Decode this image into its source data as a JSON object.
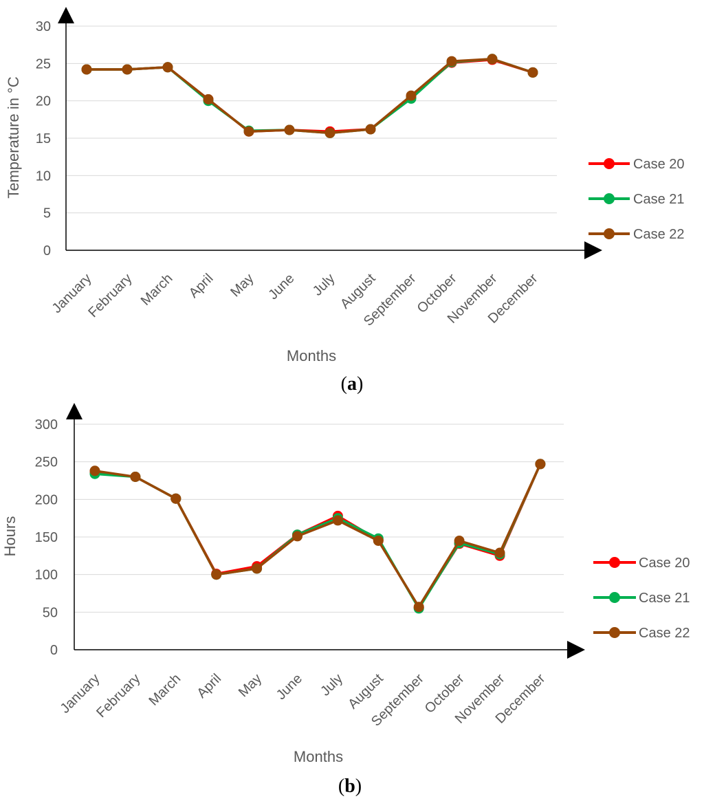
{
  "colors": {
    "grid": "#d9d9d9",
    "axis": "#000000",
    "text": "#595959",
    "case20": "#ff0000",
    "case21": "#00b050",
    "case22": "#984807"
  },
  "chart_data": [
    {
      "type": "line",
      "panel": "a",
      "panel_label": {
        "open": "(",
        "letter": "a",
        "close": ")"
      },
      "title": "",
      "xlabel": "Months",
      "ylabel": "Temperature in °C",
      "ylim": [
        0,
        30
      ],
      "yticks": [
        0,
        5,
        10,
        15,
        20,
        25,
        30
      ],
      "grid": true,
      "legend": "right",
      "categories": [
        "January",
        "February",
        "March",
        "April",
        "May",
        "June",
        "July",
        "August",
        "September",
        "October",
        "November",
        "December"
      ],
      "series": [
        {
          "name": "Case 20",
          "color": "#ff0000",
          "values": [
            24.2,
            24.2,
            24.5,
            20.2,
            15.9,
            16.1,
            15.9,
            16.2,
            20.5,
            25.1,
            25.5,
            23.8
          ]
        },
        {
          "name": "Case 21",
          "color": "#00b050",
          "values": [
            24.2,
            24.2,
            24.5,
            20.0,
            16.0,
            16.1,
            15.7,
            16.2,
            20.3,
            25.2,
            25.6,
            23.8
          ]
        },
        {
          "name": "Case 22",
          "color": "#984807",
          "values": [
            24.2,
            24.2,
            24.5,
            20.2,
            15.9,
            16.1,
            15.7,
            16.2,
            20.7,
            25.3,
            25.6,
            23.8
          ]
        }
      ]
    },
    {
      "type": "line",
      "panel": "b",
      "panel_label": {
        "open": "(",
        "letter": "b",
        "close": ")"
      },
      "title": "",
      "xlabel": "Months",
      "ylabel": "Hours",
      "ylim": [
        0,
        300
      ],
      "yticks": [
        0,
        50,
        100,
        150,
        200,
        250,
        300
      ],
      "grid": true,
      "legend": "right",
      "categories": [
        "January",
        "February",
        "March",
        "April",
        "May",
        "June",
        "July",
        "August",
        "September",
        "October",
        "November",
        "December"
      ],
      "series": [
        {
          "name": "Case 20",
          "color": "#ff0000",
          "values": [
            236,
            230,
            201,
            101,
            111,
            153,
            178,
            146,
            56,
            141,
            125,
            247
          ]
        },
        {
          "name": "Case 21",
          "color": "#00b050",
          "values": [
            234,
            230,
            201,
            100,
            108,
            153,
            175,
            148,
            55,
            142,
            127,
            247
          ]
        },
        {
          "name": "Case 22",
          "color": "#984807",
          "values": [
            238,
            230,
            201,
            100,
            108,
            151,
            172,
            145,
            57,
            145,
            129,
            247
          ]
        }
      ]
    }
  ]
}
